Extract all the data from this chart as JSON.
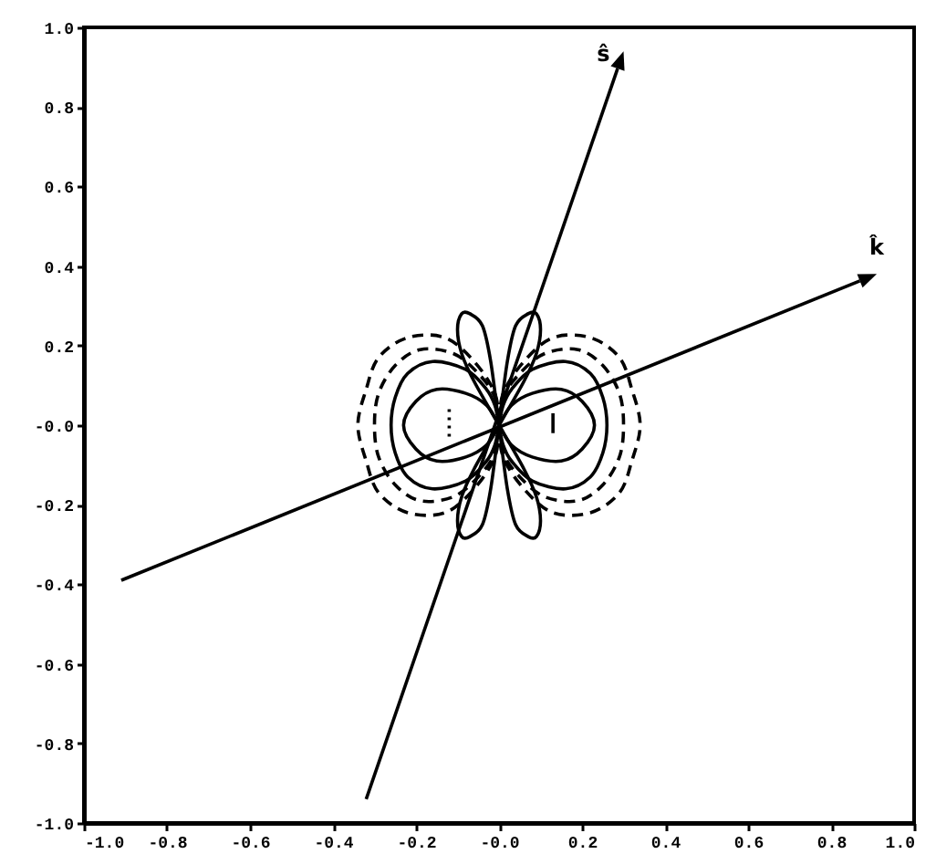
{
  "chart_data": {
    "type": "line",
    "xlim": [
      -1,
      1
    ],
    "ylim": [
      -1,
      1
    ],
    "xticks": [
      {
        "value": -1,
        "label": "-1.0"
      },
      {
        "value": -0.8,
        "label": "-0.8"
      },
      {
        "value": -0.6,
        "label": "-0.6"
      },
      {
        "value": -0.4,
        "label": "-0.4"
      },
      {
        "value": -0.2,
        "label": "-0.2"
      },
      {
        "value": 0,
        "label": "-0.0"
      },
      {
        "value": 0.2,
        "label": "0.2"
      },
      {
        "value": 0.4,
        "label": "0.4"
      },
      {
        "value": 0.6,
        "label": "0.6"
      },
      {
        "value": 0.8,
        "label": "0.8"
      },
      {
        "value": 1,
        "label": "1.0"
      }
    ],
    "yticks": [
      {
        "value": -1,
        "label": "-1.0"
      },
      {
        "value": -0.8,
        "label": "-0.8"
      },
      {
        "value": -0.6,
        "label": "-0.6"
      },
      {
        "value": -0.4,
        "label": "-0.4"
      },
      {
        "value": -0.2,
        "label": "-0.2"
      },
      {
        "value": 0,
        "label": "-0.0"
      },
      {
        "value": 0.2,
        "label": "0.2"
      },
      {
        "value": 0.4,
        "label": "0.4"
      },
      {
        "value": 0.6,
        "label": "0.6"
      },
      {
        "value": 0.8,
        "label": "0.8"
      },
      {
        "value": 1,
        "label": "1.0"
      }
    ],
    "grid": false,
    "annotations": [
      "ŝ",
      "k̂"
    ]
  }
}
